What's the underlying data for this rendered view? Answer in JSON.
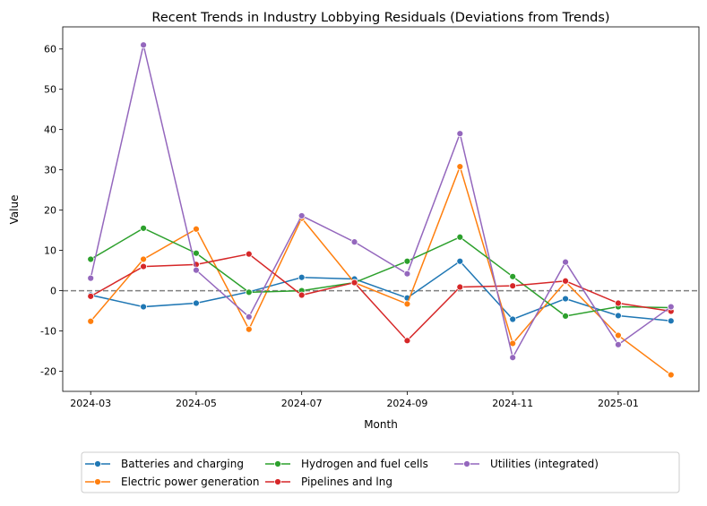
{
  "chart_data": {
    "type": "line",
    "title": "Recent Trends in Industry Lobbying Residuals (Deviations from Trends)",
    "xlabel": "Month",
    "ylabel": "Value",
    "x": [
      "2024-03",
      "2024-04",
      "2024-05",
      "2024-06",
      "2024-07",
      "2024-08",
      "2024-09",
      "2024-10",
      "2024-11",
      "2024-12",
      "2025-01",
      "2025-02"
    ],
    "xticks": [
      "2024-03",
      "2024-05",
      "2024-07",
      "2024-09",
      "2024-11",
      "2025-01"
    ],
    "yticks": [
      -20,
      -10,
      0,
      10,
      20,
      30,
      40,
      50,
      60
    ],
    "ylim": [
      -25,
      65.5
    ],
    "grid": false,
    "reference_line": {
      "y": 0,
      "style": "dashed",
      "color": "#808080"
    },
    "legend_placement": "bottom-center",
    "series": [
      {
        "name": "Batteries and charging",
        "color": "#1f77b4",
        "values": [
          -1.1,
          -4.0,
          -3.1,
          -0.3,
          3.3,
          2.9,
          -1.8,
          7.3,
          -7.1,
          -2.0,
          -6.2,
          -7.5
        ]
      },
      {
        "name": "Electric power generation",
        "color": "#ff7f0e",
        "values": [
          -7.6,
          7.8,
          15.3,
          -9.6,
          18.0,
          2.0,
          -3.3,
          30.8,
          -13.1,
          2.2,
          -11.1,
          -20.9
        ]
      },
      {
        "name": "Hydrogen and fuel cells",
        "color": "#2ca02c",
        "values": [
          7.8,
          15.5,
          9.3,
          -0.4,
          0.0,
          2.0,
          7.3,
          13.3,
          3.5,
          -6.3,
          -4.0,
          -4.2
        ]
      },
      {
        "name": "Pipelines and lng",
        "color": "#d62728",
        "values": [
          -1.4,
          6.0,
          6.5,
          9.1,
          -1.1,
          2.0,
          -12.4,
          0.9,
          1.2,
          2.4,
          -3.1,
          -5.1
        ]
      },
      {
        "name": "Utilities (integrated)",
        "color": "#9467bd",
        "values": [
          3.1,
          61.0,
          5.1,
          -6.5,
          18.6,
          12.1,
          4.2,
          39.0,
          -16.6,
          7.1,
          -13.4,
          -4.0
        ]
      }
    ]
  }
}
